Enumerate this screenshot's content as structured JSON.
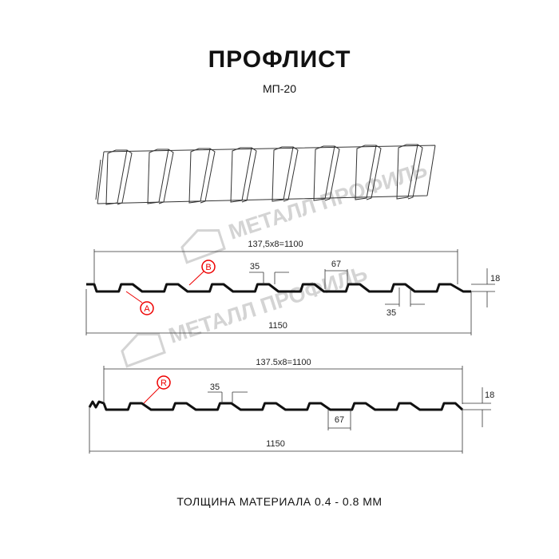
{
  "header": {
    "title": "ПРОФЛИСТ",
    "subtitle": "МП-20"
  },
  "watermark": "МЕТАЛЛ ПРОФИЛЬ",
  "profile_top": {
    "pitch_dim": "137,5x8=1100",
    "width_dim": "1150",
    "top_dim": "35",
    "bottom_dim": "35",
    "valley_dim": "67",
    "height_dim": "18",
    "labels": [
      "A",
      "B"
    ]
  },
  "profile_bottom": {
    "pitch_dim": "137.5x8=1100",
    "width_dim": "1150",
    "top_dim": "35",
    "valley_dim": "67",
    "height_dim": "18",
    "labels": [
      "R"
    ]
  },
  "footer": "ТОЛЩИНА МАТЕРИАЛА 0.4 - 0.8 ММ",
  "colors": {
    "profile": "#111111",
    "label": "#e00000",
    "watermark": "#d4d4d4"
  }
}
